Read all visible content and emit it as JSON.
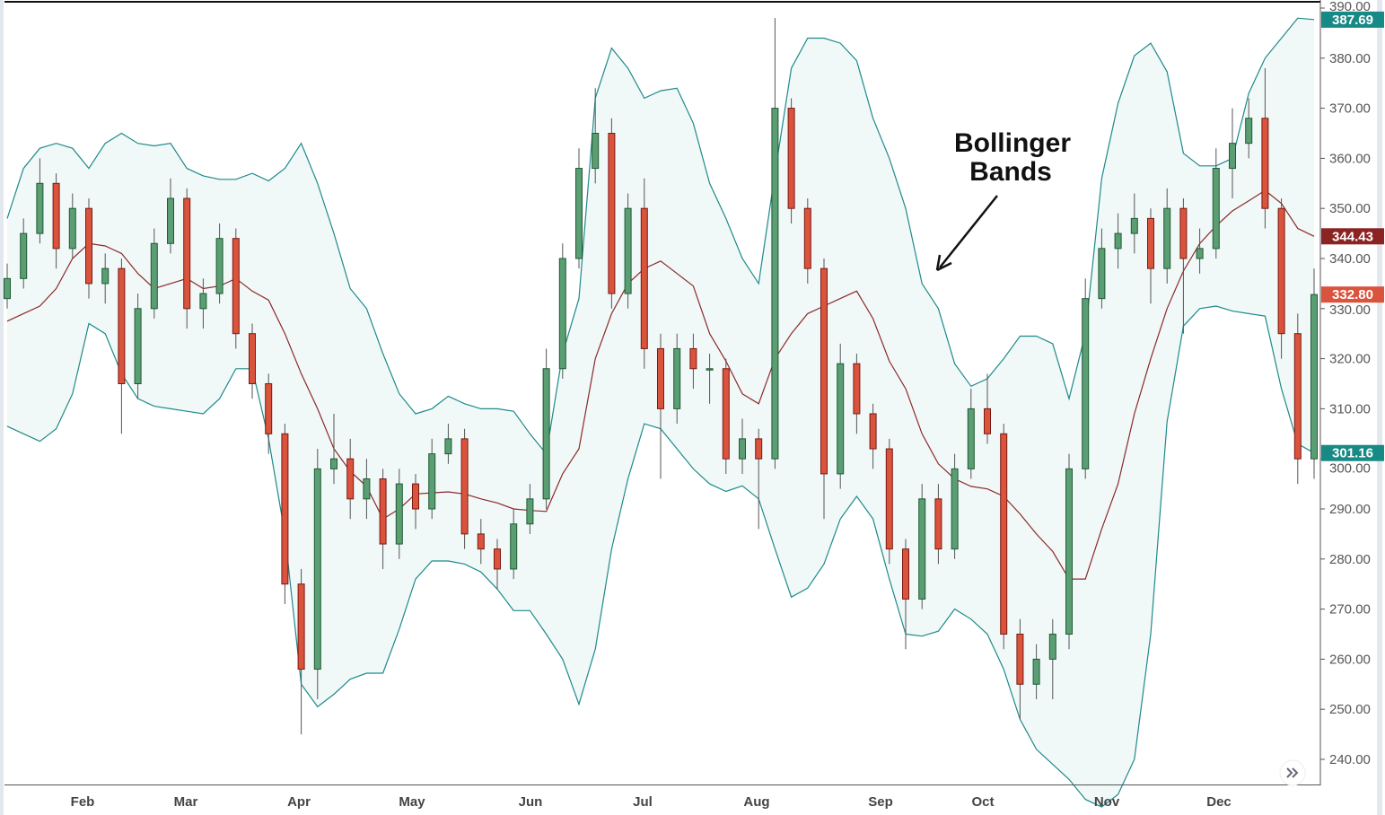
{
  "chart_data": {
    "type": "candlestick",
    "annotation": {
      "line1": "Bollinger",
      "line2": "Bands"
    },
    "x_ticks": [
      "Feb",
      "Mar",
      "Apr",
      "May",
      "Jun",
      "Jul",
      "Aug",
      "Sep",
      "Oct",
      "Nov",
      "Dec"
    ],
    "y_ticks": [
      "240.00",
      "250.00",
      "260.00",
      "270.00",
      "280.00",
      "290.00",
      "300.00",
      "310.00",
      "320.00",
      "330.00",
      "340.00",
      "350.00",
      "360.00",
      "370.00",
      "380.00",
      "390.00"
    ],
    "ylim": [
      240,
      390
    ],
    "grid": false,
    "price_labels": [
      {
        "value": 387.69,
        "text": "387.69",
        "color": "#178a86"
      },
      {
        "value": 344.43,
        "text": "344.43",
        "color": "#8b2323"
      },
      {
        "value": 332.8,
        "text": "332.80",
        "color": "#d9533d"
      },
      {
        "value": 301.16,
        "text": "301.16",
        "color": "#178a86"
      }
    ],
    "colors": {
      "up": "#5b9e74",
      "down": "#d9533d",
      "band": "#1e8a8a",
      "band_fill": "#f1f8f8",
      "middle": "#8b2a2a"
    },
    "candles_ohlc": [
      [
        332,
        339,
        330,
        336
      ],
      [
        336,
        348,
        334,
        345
      ],
      [
        345,
        360,
        343,
        355
      ],
      [
        355,
        357,
        338,
        342
      ],
      [
        342,
        353,
        340,
        350
      ],
      [
        350,
        352,
        332,
        335
      ],
      [
        335,
        341,
        331,
        338
      ],
      [
        338,
        340,
        305,
        315
      ],
      [
        315,
        333,
        312,
        330
      ],
      [
        330,
        346,
        328,
        343
      ],
      [
        343,
        356,
        341,
        352
      ],
      [
        352,
        354,
        326,
        330
      ],
      [
        330,
        336,
        326,
        333
      ],
      [
        333,
        347,
        331,
        344
      ],
      [
        344,
        346,
        322,
        325
      ],
      [
        325,
        327,
        312,
        315
      ],
      [
        315,
        317,
        301,
        305
      ],
      [
        305,
        307,
        271,
        275
      ],
      [
        275,
        278,
        245,
        258
      ],
      [
        258,
        302,
        252,
        298
      ],
      [
        298,
        309,
        295,
        300
      ],
      [
        300,
        304,
        288,
        292
      ],
      [
        292,
        300,
        288,
        296
      ],
      [
        296,
        298,
        278,
        283
      ],
      [
        283,
        298,
        280,
        295
      ],
      [
        295,
        297,
        286,
        290
      ],
      [
        290,
        304,
        288,
        301
      ],
      [
        301,
        307,
        299,
        304
      ],
      [
        304,
        306,
        282,
        285
      ],
      [
        285,
        288,
        279,
        282
      ],
      [
        282,
        284,
        274,
        278
      ],
      [
        278,
        290,
        276,
        287
      ],
      [
        287,
        295,
        285,
        292
      ],
      [
        292,
        322,
        290,
        318
      ],
      [
        318,
        343,
        316,
        340
      ],
      [
        340,
        362,
        338,
        358
      ],
      [
        358,
        374,
        355,
        365
      ],
      [
        365,
        368,
        330,
        333
      ],
      [
        333,
        353,
        330,
        350
      ],
      [
        350,
        356,
        318,
        322
      ],
      [
        322,
        325,
        296,
        310
      ],
      [
        310,
        325,
        307,
        322
      ],
      [
        322,
        325,
        314,
        318
      ],
      [
        318,
        321,
        311,
        318
      ],
      [
        318,
        320,
        297,
        300
      ],
      [
        300,
        308,
        297,
        304
      ],
      [
        304,
        306,
        286,
        300
      ],
      [
        300,
        388,
        298,
        370
      ],
      [
        370,
        372,
        347,
        350
      ],
      [
        350,
        352,
        335,
        338
      ],
      [
        338,
        340,
        288,
        297
      ],
      [
        297,
        323,
        294,
        319
      ],
      [
        319,
        321,
        305,
        309
      ],
      [
        309,
        311,
        298,
        302
      ],
      [
        302,
        304,
        279,
        282
      ],
      [
        282,
        284,
        262,
        272
      ],
      [
        272,
        295,
        270,
        292
      ],
      [
        292,
        295,
        279,
        282
      ],
      [
        282,
        301,
        280,
        298
      ],
      [
        298,
        314,
        296,
        310
      ],
      [
        310,
        317,
        303,
        305
      ],
      [
        305,
        307,
        262,
        265
      ],
      [
        265,
        268,
        248,
        255
      ],
      [
        255,
        263,
        252,
        260
      ],
      [
        260,
        268,
        252,
        265
      ],
      [
        265,
        301,
        262,
        298
      ],
      [
        298,
        336,
        296,
        332
      ],
      [
        332,
        346,
        330,
        342
      ],
      [
        342,
        349,
        338,
        345
      ],
      [
        345,
        353,
        341,
        348
      ],
      [
        348,
        350,
        331,
        338
      ],
      [
        338,
        354,
        335,
        350
      ],
      [
        350,
        352,
        325,
        340
      ],
      [
        340,
        346,
        337,
        342
      ],
      [
        342,
        362,
        340,
        358
      ],
      [
        358,
        370,
        352,
        363
      ],
      [
        363,
        372,
        360,
        368
      ],
      [
        368,
        378,
        346,
        350
      ],
      [
        350,
        352,
        320,
        325
      ],
      [
        325,
        329,
        295,
        300
      ],
      [
        300,
        338,
        296,
        332.8
      ]
    ],
    "bollinger_upper_middle_lower": [
      [
        348,
        327.5,
        306.5
      ],
      [
        358,
        329,
        305
      ],
      [
        362,
        330.5,
        303.5
      ],
      [
        363,
        334,
        306
      ],
      [
        362,
        340,
        313
      ],
      [
        358,
        343,
        327
      ],
      [
        363,
        342.5,
        325
      ],
      [
        365,
        341,
        317
      ],
      [
        363,
        337,
        312
      ],
      [
        362.5,
        334,
        310.5
      ],
      [
        363,
        335,
        310
      ],
      [
        358,
        336,
        309.5
      ],
      [
        356.5,
        334,
        309
      ],
      [
        355.8,
        334.5,
        312
      ],
      [
        355.8,
        336,
        318
      ],
      [
        357,
        333.5,
        318
      ],
      [
        355.5,
        331.7,
        304
      ],
      [
        358,
        325,
        285
      ],
      [
        363,
        317,
        255
      ],
      [
        355,
        310,
        250.5
      ],
      [
        345,
        302,
        253
      ],
      [
        334,
        297.5,
        256
      ],
      [
        330,
        294.5,
        257.2
      ],
      [
        321,
        288,
        257.2
      ],
      [
        313,
        290,
        266
      ],
      [
        309,
        293,
        276
      ],
      [
        310,
        293.2,
        279.6
      ],
      [
        312.5,
        293.4,
        279.6
      ],
      [
        311,
        293,
        279
      ],
      [
        310,
        292,
        277.4
      ],
      [
        310,
        291.2,
        274
      ],
      [
        309.5,
        290,
        269.7
      ],
      [
        305,
        289.7,
        269.7
      ],
      [
        301,
        289.5,
        265
      ],
      [
        321,
        297,
        260
      ],
      [
        332,
        302,
        251
      ],
      [
        372,
        320,
        262
      ],
      [
        382,
        329,
        282
      ],
      [
        378,
        335,
        296
      ],
      [
        372,
        338,
        307
      ],
      [
        373.5,
        339.5,
        306
      ],
      [
        374,
        337,
        302
      ],
      [
        367,
        334.5,
        298
      ],
      [
        355,
        325,
        295
      ],
      [
        348,
        319.5,
        293.5
      ],
      [
        340,
        313,
        294.6
      ],
      [
        335,
        311,
        292
      ],
      [
        357,
        320,
        282
      ],
      [
        378,
        325,
        272.4
      ],
      [
        384,
        329,
        274.2
      ],
      [
        384,
        330.5,
        279
      ],
      [
        383,
        332,
        288
      ],
      [
        379.5,
        333.5,
        292.5
      ],
      [
        368,
        328,
        288
      ],
      [
        360,
        319.5,
        276
      ],
      [
        350,
        314,
        265
      ],
      [
        335,
        305,
        264.6
      ],
      [
        330,
        299,
        265.6
      ],
      [
        319,
        296,
        270
      ],
      [
        314.5,
        294.5,
        268
      ],
      [
        316,
        294,
        265
      ],
      [
        320,
        292.5,
        258
      ],
      [
        324.5,
        289,
        248
      ],
      [
        324.5,
        285,
        242
      ],
      [
        323,
        281.5,
        239
      ],
      [
        312,
        276,
        236
      ],
      [
        325,
        276,
        232
      ],
      [
        356,
        286,
        230.5
      ],
      [
        371,
        295,
        233
      ],
      [
        380.5,
        309,
        240
      ],
      [
        383,
        320,
        265
      ],
      [
        377.3,
        330,
        307.4
      ],
      [
        361,
        337.5,
        326.5
      ],
      [
        358.5,
        343,
        330
      ],
      [
        358.5,
        346.5,
        330.5
      ],
      [
        360,
        349.5,
        329.5
      ],
      [
        373,
        351.5,
        329
      ],
      [
        380,
        353.6,
        328.5
      ],
      [
        384,
        351,
        314
      ],
      [
        388,
        346,
        303
      ],
      [
        387.7,
        344.43,
        301.16
      ]
    ]
  },
  "ui": {
    "scroll_button_icon": "double-chevron-right-icon"
  }
}
